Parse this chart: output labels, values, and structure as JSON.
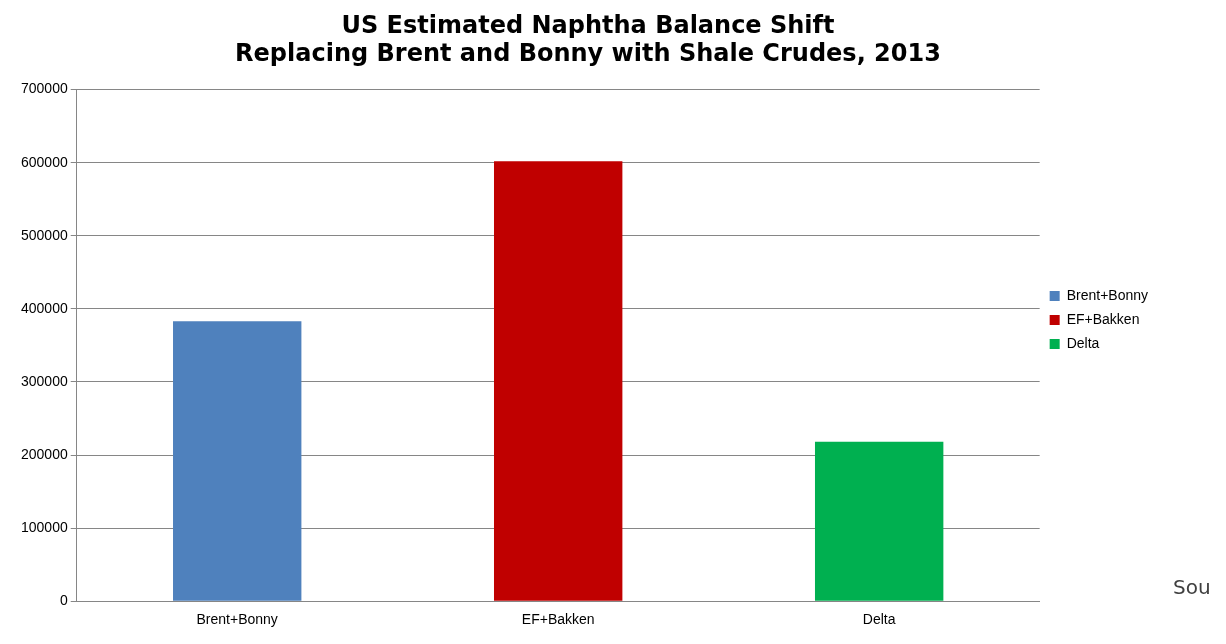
{
  "chart_data": {
    "type": "bar",
    "title": [
      "US Estimated Naphtha Balance Shift",
      "Replacing Brent and Bonny with Shale Crudes, 2013"
    ],
    "categories": [
      "Brent+Bonny",
      "EF+Bakken",
      "Delta"
    ],
    "series": [
      {
        "name": "Brent+Bonny",
        "color": "#4f81bd",
        "values": [
          383000,
          null,
          null
        ]
      },
      {
        "name": "EF+Bakken",
        "color": "#c00000",
        "values": [
          null,
          602000,
          null
        ]
      },
      {
        "name": "Delta",
        "color": "#00b050",
        "values": [
          null,
          null,
          218000
        ]
      }
    ],
    "ylim": [
      0,
      700000
    ],
    "yticks": [
      0,
      100000,
      200000,
      300000,
      400000,
      500000,
      600000,
      700000
    ],
    "grid": "y",
    "legend": "right",
    "annotations": [
      "Sou"
    ]
  }
}
